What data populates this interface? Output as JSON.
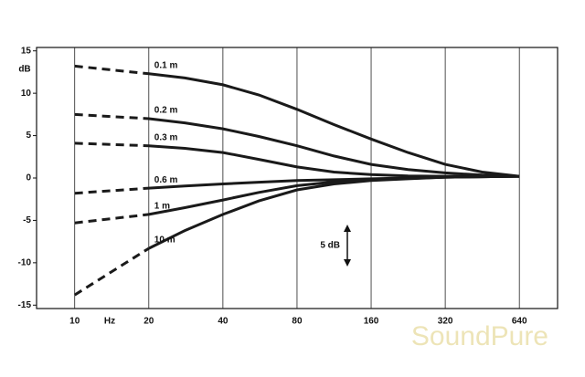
{
  "chart_data": {
    "type": "line",
    "x": [
      10,
      20,
      28,
      40,
      56,
      80,
      113,
      160,
      226,
      320,
      452,
      640
    ],
    "x_label": "Hz",
    "y_label": "dB",
    "xlim": [
      7,
      915
    ],
    "ylim": [
      -15.4,
      15.4
    ],
    "xscale": "log",
    "xticks": [
      10,
      20,
      40,
      80,
      160,
      320,
      640
    ],
    "yticks": [
      15,
      10,
      5,
      0,
      -5,
      -10,
      -15
    ],
    "grid": "x",
    "dashed_to_x": 20,
    "line_color": "#1a1a1a",
    "series": [
      {
        "name": "0.1 m",
        "values": [
          13.2,
          12.3,
          11.8,
          11.0,
          9.8,
          8.1,
          6.3,
          4.6,
          3.0,
          1.6,
          0.7,
          0.2
        ]
      },
      {
        "name": "0.2 m",
        "values": [
          7.5,
          7.0,
          6.5,
          5.8,
          4.9,
          3.8,
          2.6,
          1.6,
          1.0,
          0.6,
          0.35,
          0.2
        ]
      },
      {
        "name": "0.3 m",
        "values": [
          4.1,
          3.8,
          3.5,
          3.0,
          2.2,
          1.3,
          0.7,
          0.4,
          0.25,
          0.2,
          0.2,
          0.2
        ]
      },
      {
        "name": "0.6 m",
        "values": [
          -1.8,
          -1.2,
          -0.95,
          -0.7,
          -0.5,
          -0.3,
          -0.2,
          -0.1,
          0,
          0.1,
          0.15,
          0.2
        ]
      },
      {
        "name": "1 m",
        "values": [
          -5.3,
          -4.3,
          -3.5,
          -2.6,
          -1.7,
          -0.9,
          -0.45,
          -0.2,
          -0.05,
          0.1,
          0.15,
          0.2
        ]
      },
      {
        "name": "10 m",
        "values": [
          -13.8,
          -8.3,
          -6.2,
          -4.3,
          -2.7,
          -1.4,
          -0.7,
          -0.3,
          -0.1,
          0.1,
          0.15,
          0.2
        ]
      }
    ],
    "annotation": "5 dB",
    "watermark": "SoundPure"
  }
}
